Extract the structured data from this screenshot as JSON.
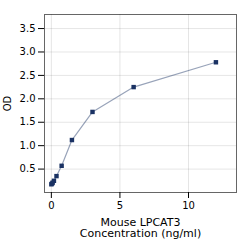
{
  "chart_data": {
    "type": "line",
    "x": [
      0,
      0.047,
      0.094,
      0.188,
      0.375,
      0.75,
      1.5,
      3,
      6,
      12
    ],
    "values": [
      0.175,
      0.19,
      0.21,
      0.25,
      0.35,
      0.57,
      1.12,
      1.72,
      2.25,
      2.78
    ],
    "color": "#1a3263",
    "marker": "square",
    "xlabel": "Mouse LPCAT3\nConcentration (ng/ml)",
    "ylabel": "OD",
    "xlim": [
      -0.5,
      13.5
    ],
    "ylim": [
      0,
      3.8
    ],
    "xticks": [
      0,
      5,
      10
    ],
    "yticks": [
      0.5,
      {
        "value": 1.0,
        "label": "1.0"
      },
      1.5,
      {
        "value": 2.0,
        "label": "2.0"
      },
      2.5,
      {
        "value": 3.0,
        "label": "3.0"
      },
      3.5
    ],
    "grid": true
  }
}
